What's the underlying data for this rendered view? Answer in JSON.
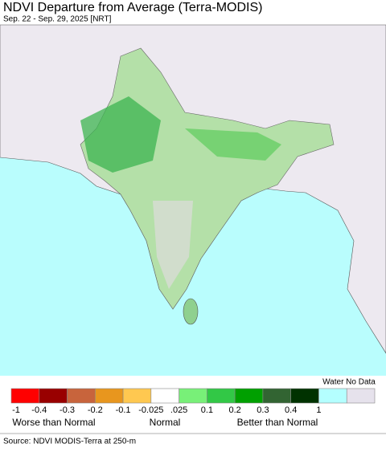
{
  "header": {
    "title": "NDVI Departure from Average (Terra-MODIS)",
    "subtitle": "Sep. 22 - Sep. 29, 2025 [NRT]"
  },
  "legend": {
    "colors": [
      "#ff0000",
      "#990000",
      "#c8643c",
      "#e8961e",
      "#ffc850",
      "#ffffff",
      "#78f078",
      "#32c846",
      "#00a000",
      "#326432",
      "#003200",
      "#b4ffff",
      "#e6e2ec"
    ],
    "tick_labels": [
      "-1",
      "-0.4",
      "-0.3",
      "-0.2",
      "-0.1",
      "-0.025",
      ".025",
      "0.1",
      "0.2",
      "0.3",
      "0.4",
      "1"
    ],
    "extra_label": "Water No Data",
    "categories": [
      "Worse than Normal",
      "Normal",
      "Better than Normal"
    ]
  },
  "footer": {
    "source": "Source: NDVI MODIS-Terra at 250-m"
  }
}
